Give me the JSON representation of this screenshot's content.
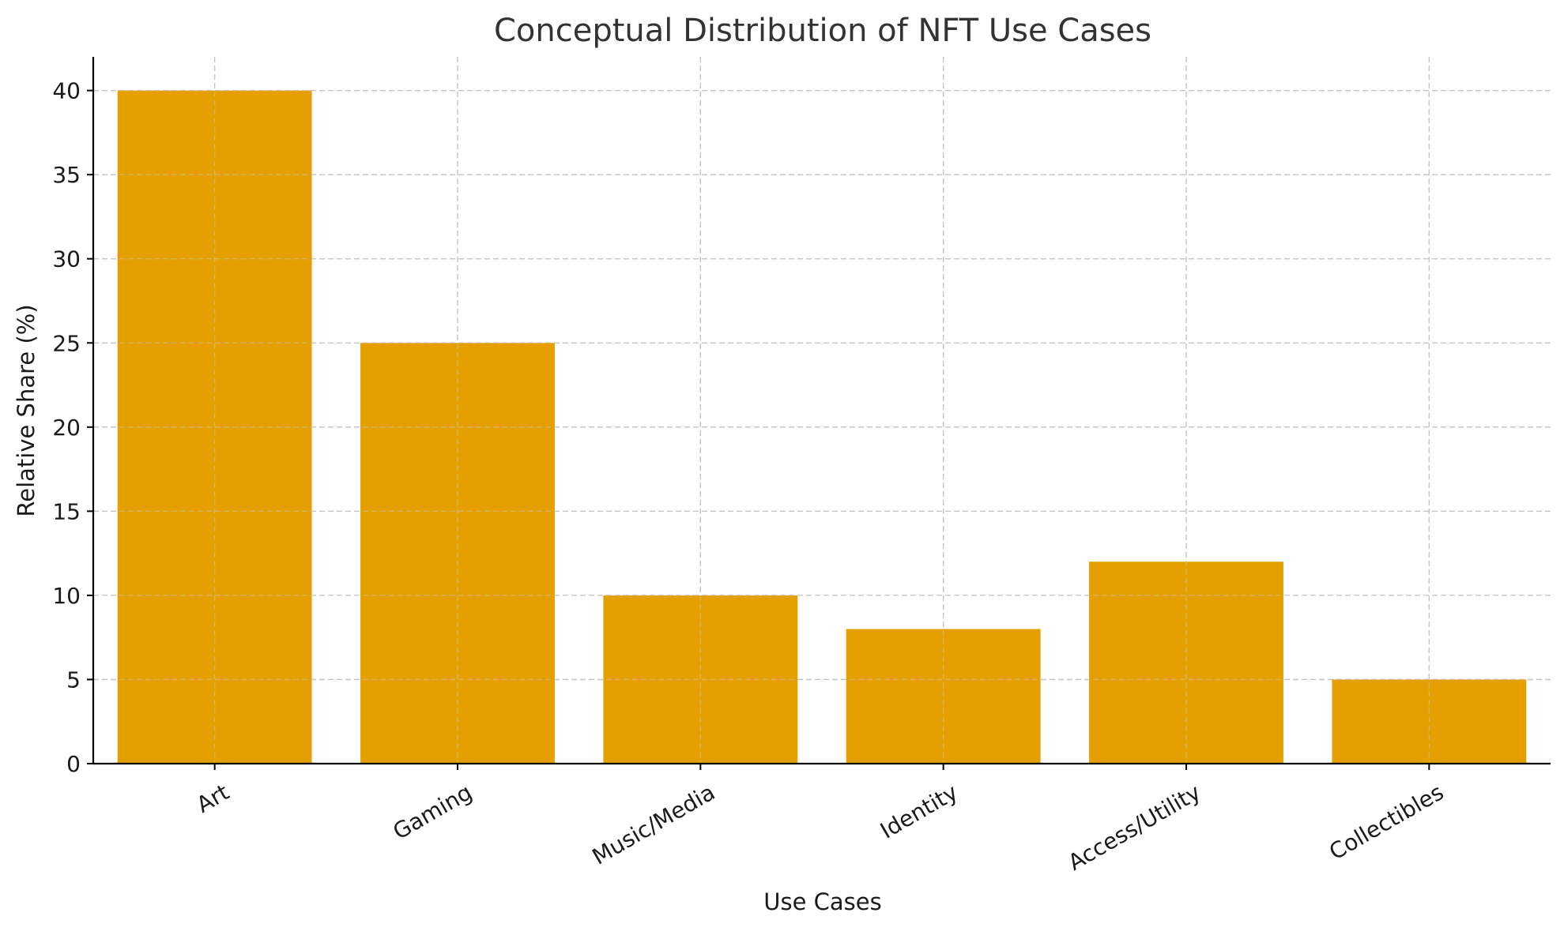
{
  "chart_data": {
    "type": "bar",
    "title": "Conceptual Distribution of NFT Use Cases",
    "xlabel": "Use Cases",
    "ylabel": "Relative Share (%)",
    "categories": [
      "Art",
      "Gaming",
      "Music/Media",
      "Identity",
      "Access/Utility",
      "Collectibles"
    ],
    "values": [
      40,
      25,
      10,
      8,
      12,
      5
    ],
    "ylim": [
      0,
      42
    ],
    "yticks": [
      0,
      5,
      10,
      15,
      20,
      25,
      30,
      35,
      40
    ],
    "grid": true,
    "grid_style": "dashed",
    "x_tick_rotation_deg": 30,
    "bar_color": "#E69F00"
  }
}
